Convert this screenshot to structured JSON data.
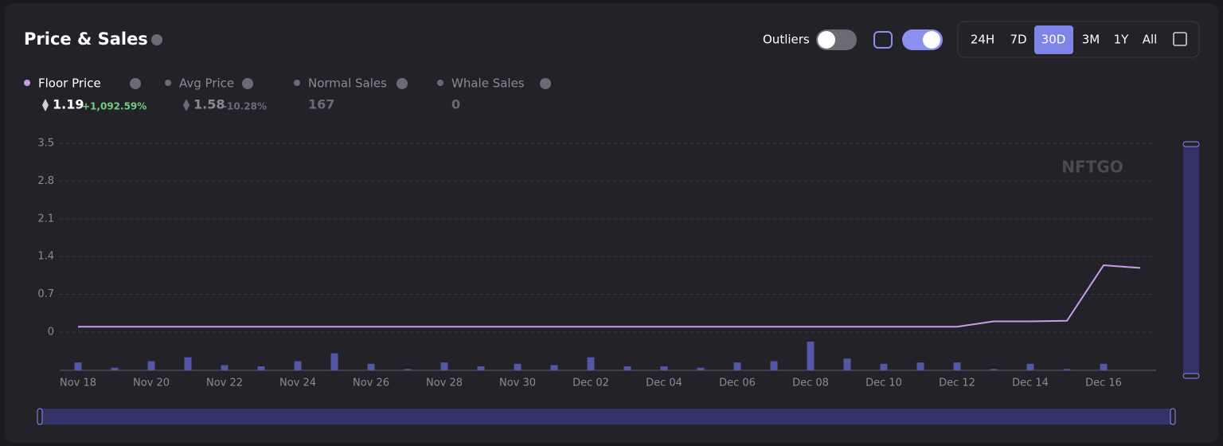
{
  "header": {
    "title": "Price & Sales",
    "outliers_label": "Outliers",
    "ranges": [
      "24H",
      "7D",
      "30D",
      "3M",
      "1Y",
      "All"
    ],
    "active_range": 2
  },
  "legend": [
    {
      "name": "Floor Price",
      "value": "1.19",
      "change": "+1,092.59%"
    },
    {
      "name": "Avg Price",
      "value": "1.58",
      "change": "-10.28%"
    },
    {
      "name": "Normal Sales",
      "value": "167"
    },
    {
      "name": "Whale Sales",
      "value": "0"
    }
  ],
  "watermark": "NFTGO",
  "chart_data": {
    "type": "line",
    "categories": [
      "Nov 18",
      null,
      "Nov 20",
      null,
      "Nov 22",
      null,
      "Nov 24",
      null,
      "Nov 26",
      null,
      "Nov 28",
      null,
      "Nov 30",
      null,
      "Dec 02",
      null,
      "Dec 04",
      null,
      "Dec 06",
      null,
      "Dec 08",
      null,
      "Dec 10",
      null,
      "Dec 12",
      null,
      "Dec 14",
      null,
      "Dec 16",
      null
    ],
    "series": [
      {
        "type": "line",
        "color": "#c99be8",
        "values": [
          0.1,
          0.1,
          0.1,
          0.1,
          0.1,
          0.1,
          0.1,
          0.1,
          0.1,
          0.1,
          0.1,
          0.1,
          0.1,
          0.1,
          0.1,
          0.1,
          0.1,
          0.1,
          0.1,
          0.1,
          0.1,
          0.1,
          0.1,
          0.1,
          0.1,
          0.2,
          0.2,
          0.21,
          1.24,
          1.19
        ]
      },
      {
        "type": "bar",
        "axis": "y2",
        "color": "#5457a6",
        "values": [
          6,
          2,
          7,
          10,
          4,
          3,
          7,
          13,
          5,
          1,
          6,
          3,
          5,
          4,
          10,
          3,
          3,
          2,
          6,
          7,
          22,
          9,
          5,
          6,
          6,
          1,
          5,
          1,
          5,
          0
        ]
      }
    ],
    "ylim": [
      0,
      3.5
    ],
    "yticks": [
      0,
      0.7,
      1.4,
      2.1,
      2.8,
      3.5
    ],
    "y2lim": [
      0,
      25
    ],
    "grid": true
  }
}
